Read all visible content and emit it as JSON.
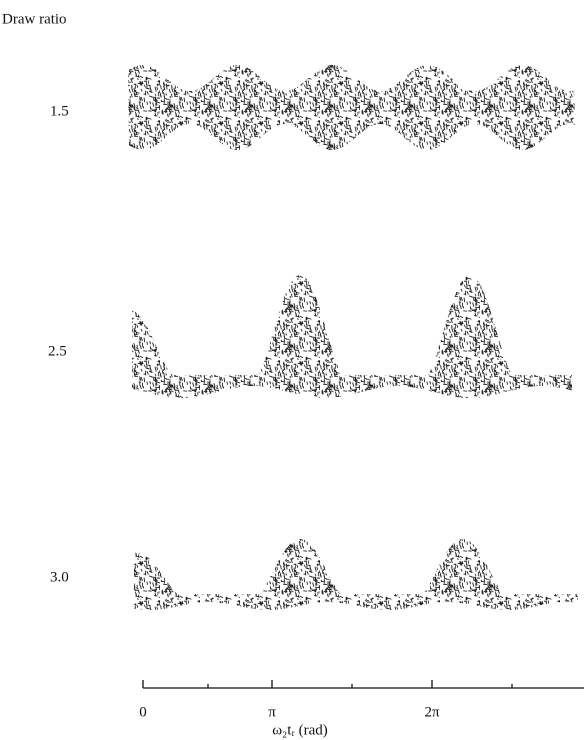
{
  "figure": {
    "y_heading": "Draw ratio",
    "rows": [
      {
        "label": "1.5"
      },
      {
        "label": "2.5"
      },
      {
        "label": "3.0"
      }
    ],
    "x_ticks": [
      "0",
      "π",
      "2π"
    ],
    "x_label": "ω₂tᵣ (rad)"
  }
}
